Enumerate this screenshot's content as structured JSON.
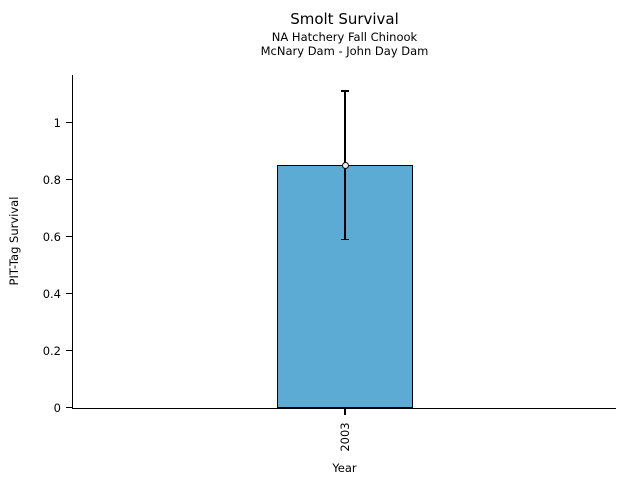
{
  "window": {
    "background": "#ffffff"
  },
  "chart_data": {
    "type": "bar",
    "title": "Smolt Survival",
    "subtitle_lines": [
      "NA Hatchery Fall Chinook",
      "McNary Dam - John Day Dam"
    ],
    "xlabel": "Year",
    "ylabel": "PIT-Tag Survival",
    "categories": [
      "2003"
    ],
    "values": [
      0.85
    ],
    "error_low": [
      0.59
    ],
    "error_high": [
      1.11
    ],
    "ytick_values": [
      0,
      0.2,
      0.4,
      0.6,
      0.8,
      1
    ],
    "ytick_labels": [
      "0",
      "0.2",
      "0.4",
      "0.6",
      "0.8",
      "1"
    ],
    "ylim": [
      0,
      1.17
    ],
    "grid": false,
    "legend_position": "none",
    "bar_color": "#5BABD5",
    "edge_color": "#000000",
    "marker": "open-circle",
    "marker_fill": "#ECECEC",
    "text_color": "#000000"
  }
}
